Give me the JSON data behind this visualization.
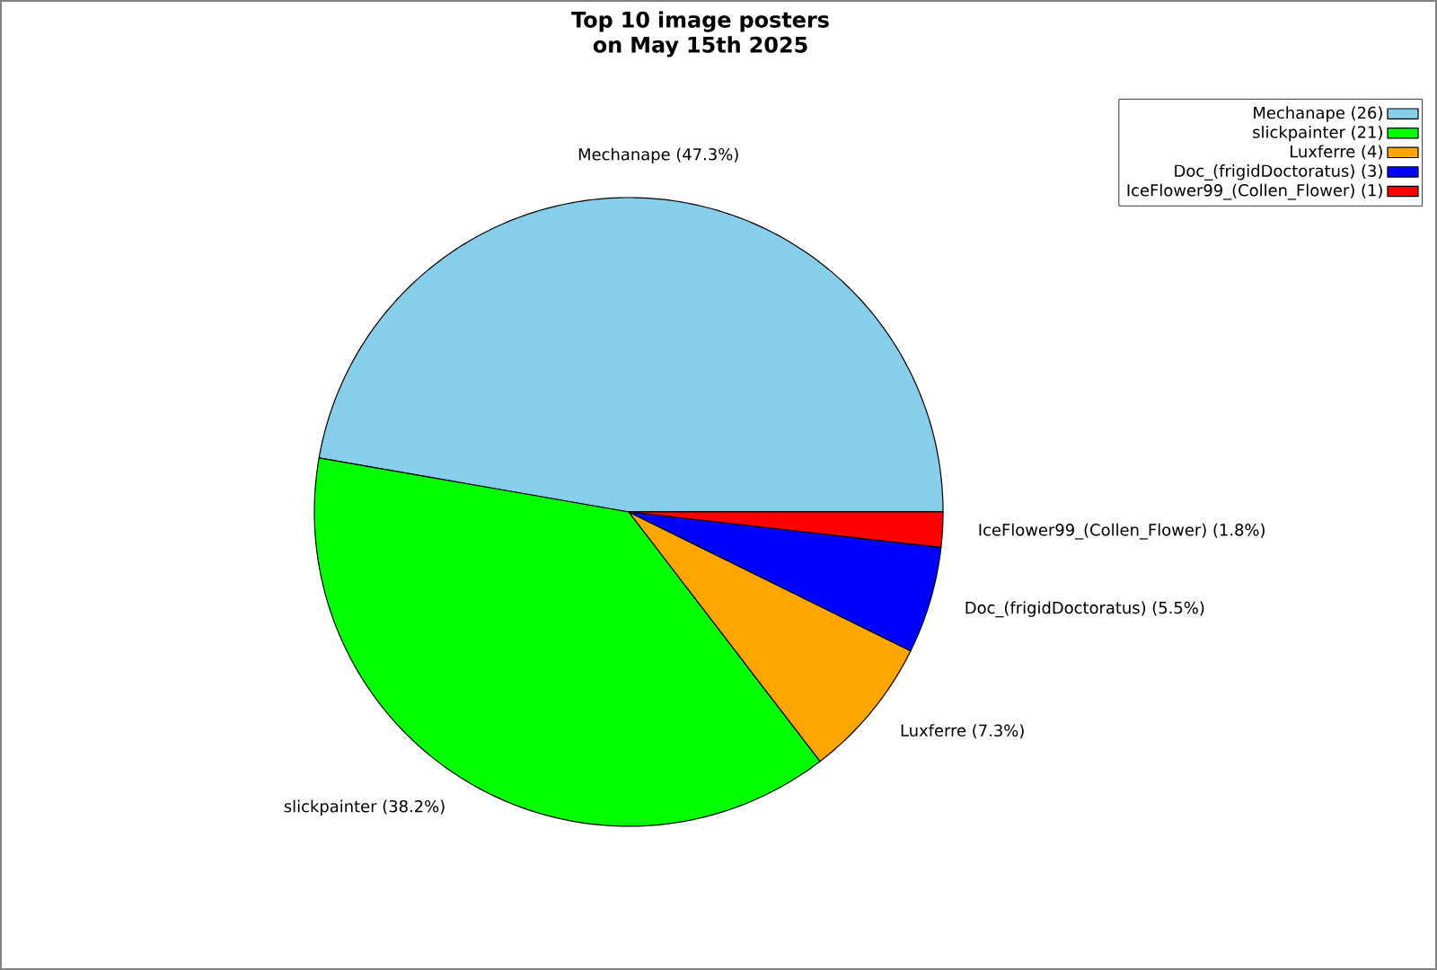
{
  "chart_data": {
    "type": "pie",
    "title": "Top 10 image posters on May 15th 2025",
    "categories": [
      "Mechanape (26)",
      "slickpainter (21)",
      "Luxferre (4)",
      "Doc_(frigidDoctoratus) (3)",
      "IceFlower99_(Collen_Flower) (1)"
    ],
    "values": [
      47.3,
      38.2,
      7.3,
      5.5,
      1.8
    ],
    "value_labels": [
      "Mechanape (47.3%)",
      "slickpainter (38.2%)",
      "Luxferre (7.3%)",
      "Doc_(frigidDoctoratus) (5.5%)",
      "IceFlower99_(Collen_Flower) (1.8%)"
    ],
    "colors": [
      "#87ceeb",
      "#00ff00",
      "#ffa500",
      "#0000ff",
      "#ff0000"
    ],
    "legend": "top right"
  }
}
